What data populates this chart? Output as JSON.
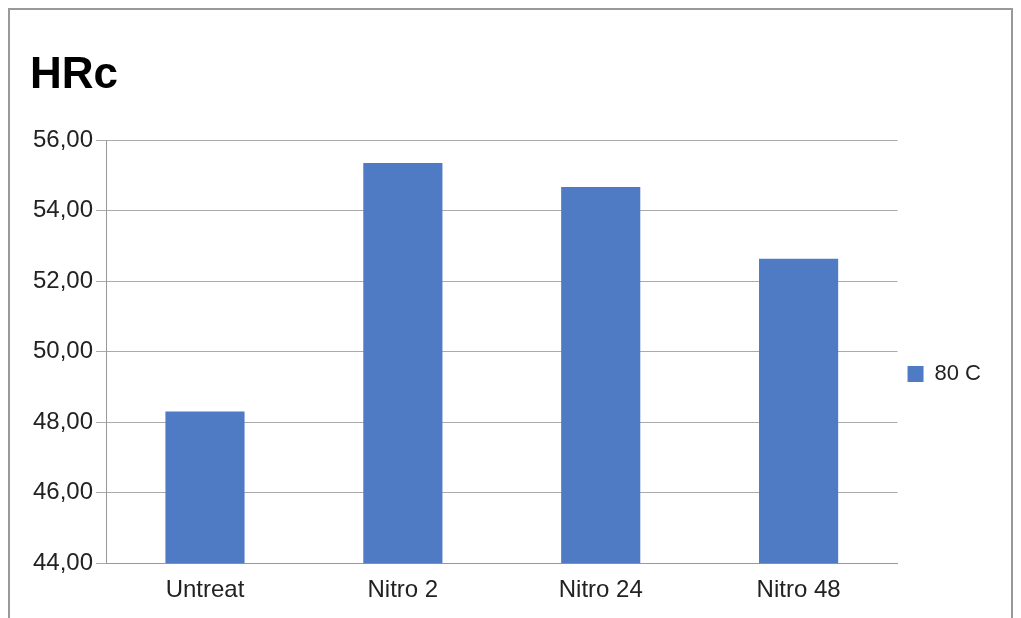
{
  "chart_data": {
    "type": "bar",
    "title": "HRc",
    "categories": [
      "Untreat",
      "Nitro 2",
      "Nitro 24",
      "Nitro 48"
    ],
    "series": [
      {
        "name": "80 C",
        "color": "#4f7bc4",
        "values": [
          48.3,
          55.35,
          54.67,
          52.63
        ]
      }
    ],
    "ylim": [
      44,
      56
    ],
    "yticks": [
      {
        "value": 44,
        "label": "44,00"
      },
      {
        "value": 46,
        "label": "46,00"
      },
      {
        "value": 48,
        "label": "48,00"
      },
      {
        "value": 50,
        "label": "50,00"
      },
      {
        "value": 52,
        "label": "52,00"
      },
      {
        "value": 54,
        "label": "54,00"
      },
      {
        "value": 56,
        "label": "56,00"
      }
    ],
    "grid": "y",
    "legend": "right"
  }
}
